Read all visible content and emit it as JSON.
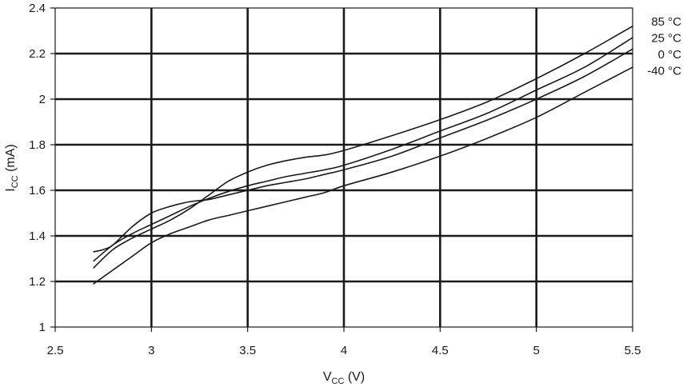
{
  "chart_data": {
    "type": "line",
    "xlabel": {
      "main": "V",
      "sub": "CC",
      "unit": " (V)"
    },
    "ylabel": {
      "main": "I",
      "sub": "CC",
      "unit": " (mA)"
    },
    "xlim": [
      2.5,
      5.5
    ],
    "ylim": [
      1,
      2.4
    ],
    "x_ticks": [
      "2.5",
      "3",
      "3.5",
      "4",
      "4.5",
      "5",
      "5.5"
    ],
    "y_ticks": [
      "1",
      "1.2",
      "1.4",
      "1.6",
      "1.8",
      "2",
      "2.2",
      "2.4"
    ],
    "grid": true,
    "legend_position": "right",
    "series": [
      {
        "name": "85 °C",
        "points": [
          [
            2.7,
            1.26
          ],
          [
            2.8,
            1.34
          ],
          [
            2.9,
            1.39
          ],
          [
            3.0,
            1.43
          ],
          [
            3.1,
            1.47
          ],
          [
            3.2,
            1.52
          ],
          [
            3.3,
            1.58
          ],
          [
            3.4,
            1.64
          ],
          [
            3.5,
            1.68
          ],
          [
            3.6,
            1.71
          ],
          [
            3.7,
            1.73
          ],
          [
            3.8,
            1.745
          ],
          [
            3.9,
            1.755
          ],
          [
            4.0,
            1.775
          ],
          [
            4.25,
            1.84
          ],
          [
            4.5,
            1.91
          ],
          [
            4.75,
            1.99
          ],
          [
            5.0,
            2.09
          ],
          [
            5.25,
            2.2
          ],
          [
            5.5,
            2.32
          ]
        ]
      },
      {
        "name": "25 °C",
        "points": [
          [
            2.7,
            1.29
          ],
          [
            2.8,
            1.36
          ],
          [
            2.9,
            1.41
          ],
          [
            3.0,
            1.45
          ],
          [
            3.1,
            1.49
          ],
          [
            3.2,
            1.53
          ],
          [
            3.3,
            1.565
          ],
          [
            3.4,
            1.595
          ],
          [
            3.5,
            1.62
          ],
          [
            3.6,
            1.64
          ],
          [
            3.7,
            1.66
          ],
          [
            3.8,
            1.675
          ],
          [
            3.9,
            1.69
          ],
          [
            4.0,
            1.71
          ],
          [
            4.25,
            1.78
          ],
          [
            4.5,
            1.86
          ],
          [
            4.75,
            1.94
          ],
          [
            5.0,
            2.04
          ],
          [
            5.25,
            2.14
          ],
          [
            5.5,
            2.27
          ]
        ]
      },
      {
        "name": "0 °C",
        "points": [
          [
            2.7,
            1.33
          ],
          [
            2.75,
            1.34
          ],
          [
            2.8,
            1.36
          ],
          [
            2.9,
            1.44
          ],
          [
            3.0,
            1.5
          ],
          [
            3.1,
            1.53
          ],
          [
            3.2,
            1.55
          ],
          [
            3.3,
            1.56
          ],
          [
            3.4,
            1.58
          ],
          [
            3.5,
            1.6
          ],
          [
            3.6,
            1.62
          ],
          [
            3.7,
            1.635
          ],
          [
            3.8,
            1.65
          ],
          [
            3.9,
            1.67
          ],
          [
            4.0,
            1.69
          ],
          [
            4.25,
            1.75
          ],
          [
            4.5,
            1.83
          ],
          [
            4.75,
            1.91
          ],
          [
            5.0,
            2.0
          ],
          [
            5.25,
            2.1
          ],
          [
            5.5,
            2.22
          ]
        ]
      },
      {
        "name": "-40 °C",
        "points": [
          [
            2.7,
            1.19
          ],
          [
            2.8,
            1.25
          ],
          [
            2.9,
            1.31
          ],
          [
            3.0,
            1.37
          ],
          [
            3.1,
            1.41
          ],
          [
            3.2,
            1.44
          ],
          [
            3.3,
            1.47
          ],
          [
            3.4,
            1.49
          ],
          [
            3.5,
            1.51
          ],
          [
            3.6,
            1.53
          ],
          [
            3.7,
            1.55
          ],
          [
            3.8,
            1.57
          ],
          [
            3.9,
            1.59
          ],
          [
            4.0,
            1.62
          ],
          [
            4.25,
            1.68
          ],
          [
            4.5,
            1.75
          ],
          [
            4.75,
            1.83
          ],
          [
            5.0,
            1.92
          ],
          [
            5.25,
            2.03
          ],
          [
            5.5,
            2.14
          ]
        ]
      }
    ],
    "legend_order": [
      "85 °C",
      "25 °C",
      "0 °C",
      "-40 °C"
    ],
    "colors": {
      "ink": "#1a1a1a",
      "background": "#ffffff"
    }
  }
}
